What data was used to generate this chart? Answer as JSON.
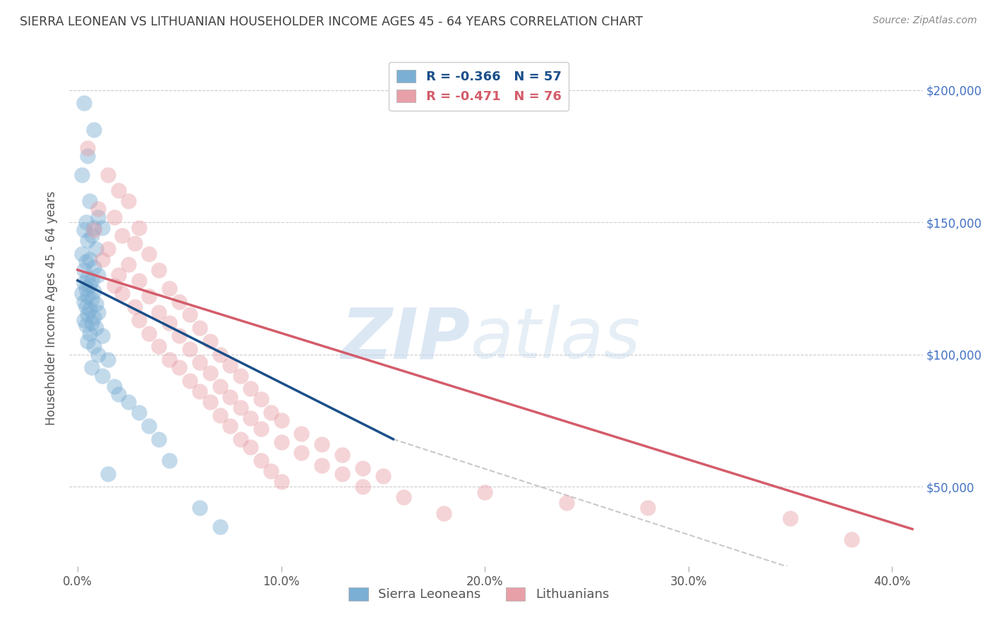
{
  "title": "SIERRA LEONEAN VS LITHUANIAN HOUSEHOLDER INCOME AGES 45 - 64 YEARS CORRELATION CHART",
  "source": "Source: ZipAtlas.com",
  "xlabel_ticks": [
    "0.0%",
    "",
    "",
    "",
    "10.0%",
    "",
    "",
    "",
    "20.0%",
    "",
    "",
    "",
    "30.0%",
    "",
    "",
    "",
    "40.0%"
  ],
  "xlabel_tick_vals": [
    0.0,
    0.025,
    0.05,
    0.075,
    0.1,
    0.125,
    0.15,
    0.175,
    0.2,
    0.225,
    0.25,
    0.275,
    0.3,
    0.325,
    0.35,
    0.375,
    0.4
  ],
  "xlabel_main_ticks": [
    0.0,
    0.1,
    0.2,
    0.3,
    0.4
  ],
  "xlabel_main_labels": [
    "0.0%",
    "10.0%",
    "20.0%",
    "30.0%",
    "40.0%"
  ],
  "ylabel": "Householder Income Ages 45 - 64 years",
  "ylabel_ticks": [
    "$50,000",
    "$100,000",
    "$150,000",
    "$200,000"
  ],
  "ylabel_tick_vals": [
    50000,
    100000,
    150000,
    200000
  ],
  "ylim": [
    20000,
    215000
  ],
  "xlim": [
    -0.004,
    0.415
  ],
  "legend_blue_label": "R = -0.366   N = 57",
  "legend_pink_label": "R = -0.471   N = 76",
  "legend_bottom_blue": "Sierra Leoneans",
  "legend_bottom_pink": "Lithuanians",
  "blue_color": "#7bafd4",
  "pink_color": "#e8a0a8",
  "blue_line_color": "#1a4f8a",
  "pink_line_color": "#d45c6a",
  "dashed_line_color": "#bbbbbb",
  "blue_scatter": [
    [
      0.003,
      195000
    ],
    [
      0.008,
      185000
    ],
    [
      0.005,
      175000
    ],
    [
      0.002,
      168000
    ],
    [
      0.006,
      158000
    ],
    [
      0.01,
      152000
    ],
    [
      0.004,
      150000
    ],
    [
      0.008,
      148000
    ],
    [
      0.012,
      148000
    ],
    [
      0.003,
      147000
    ],
    [
      0.007,
      145000
    ],
    [
      0.005,
      143000
    ],
    [
      0.009,
      140000
    ],
    [
      0.002,
      138000
    ],
    [
      0.006,
      136000
    ],
    [
      0.004,
      135000
    ],
    [
      0.008,
      133000
    ],
    [
      0.003,
      132000
    ],
    [
      0.01,
      130000
    ],
    [
      0.005,
      129000
    ],
    [
      0.007,
      128000
    ],
    [
      0.003,
      127000
    ],
    [
      0.006,
      126000
    ],
    [
      0.004,
      125000
    ],
    [
      0.008,
      124000
    ],
    [
      0.002,
      123000
    ],
    [
      0.005,
      122000
    ],
    [
      0.007,
      121000
    ],
    [
      0.003,
      120000
    ],
    [
      0.009,
      119000
    ],
    [
      0.004,
      118000
    ],
    [
      0.006,
      117000
    ],
    [
      0.01,
      116000
    ],
    [
      0.005,
      115000
    ],
    [
      0.008,
      114000
    ],
    [
      0.003,
      113000
    ],
    [
      0.007,
      112000
    ],
    [
      0.004,
      111000
    ],
    [
      0.009,
      110000
    ],
    [
      0.006,
      108000
    ],
    [
      0.012,
      107000
    ],
    [
      0.005,
      105000
    ],
    [
      0.008,
      103000
    ],
    [
      0.01,
      100000
    ],
    [
      0.015,
      98000
    ],
    [
      0.007,
      95000
    ],
    [
      0.012,
      92000
    ],
    [
      0.018,
      88000
    ],
    [
      0.02,
      85000
    ],
    [
      0.025,
      82000
    ],
    [
      0.03,
      78000
    ],
    [
      0.035,
      73000
    ],
    [
      0.04,
      68000
    ],
    [
      0.045,
      60000
    ],
    [
      0.015,
      55000
    ],
    [
      0.06,
      42000
    ],
    [
      0.07,
      35000
    ]
  ],
  "pink_scatter": [
    [
      0.005,
      178000
    ],
    [
      0.015,
      168000
    ],
    [
      0.02,
      162000
    ],
    [
      0.025,
      158000
    ],
    [
      0.01,
      155000
    ],
    [
      0.018,
      152000
    ],
    [
      0.03,
      148000
    ],
    [
      0.008,
      147000
    ],
    [
      0.022,
      145000
    ],
    [
      0.028,
      142000
    ],
    [
      0.015,
      140000
    ],
    [
      0.035,
      138000
    ],
    [
      0.012,
      136000
    ],
    [
      0.025,
      134000
    ],
    [
      0.04,
      132000
    ],
    [
      0.02,
      130000
    ],
    [
      0.03,
      128000
    ],
    [
      0.018,
      126000
    ],
    [
      0.045,
      125000
    ],
    [
      0.022,
      123000
    ],
    [
      0.035,
      122000
    ],
    [
      0.05,
      120000
    ],
    [
      0.028,
      118000
    ],
    [
      0.04,
      116000
    ],
    [
      0.055,
      115000
    ],
    [
      0.03,
      113000
    ],
    [
      0.045,
      112000
    ],
    [
      0.06,
      110000
    ],
    [
      0.035,
      108000
    ],
    [
      0.05,
      107000
    ],
    [
      0.065,
      105000
    ],
    [
      0.04,
      103000
    ],
    [
      0.055,
      102000
    ],
    [
      0.07,
      100000
    ],
    [
      0.045,
      98000
    ],
    [
      0.06,
      97000
    ],
    [
      0.075,
      96000
    ],
    [
      0.05,
      95000
    ],
    [
      0.065,
      93000
    ],
    [
      0.08,
      92000
    ],
    [
      0.055,
      90000
    ],
    [
      0.07,
      88000
    ],
    [
      0.085,
      87000
    ],
    [
      0.06,
      86000
    ],
    [
      0.075,
      84000
    ],
    [
      0.09,
      83000
    ],
    [
      0.065,
      82000
    ],
    [
      0.08,
      80000
    ],
    [
      0.095,
      78000
    ],
    [
      0.07,
      77000
    ],
    [
      0.085,
      76000
    ],
    [
      0.1,
      75000
    ],
    [
      0.075,
      73000
    ],
    [
      0.09,
      72000
    ],
    [
      0.11,
      70000
    ],
    [
      0.08,
      68000
    ],
    [
      0.1,
      67000
    ],
    [
      0.12,
      66000
    ],
    [
      0.085,
      65000
    ],
    [
      0.11,
      63000
    ],
    [
      0.13,
      62000
    ],
    [
      0.09,
      60000
    ],
    [
      0.12,
      58000
    ],
    [
      0.14,
      57000
    ],
    [
      0.095,
      56000
    ],
    [
      0.13,
      55000
    ],
    [
      0.15,
      54000
    ],
    [
      0.1,
      52000
    ],
    [
      0.14,
      50000
    ],
    [
      0.2,
      48000
    ],
    [
      0.16,
      46000
    ],
    [
      0.24,
      44000
    ],
    [
      0.28,
      42000
    ],
    [
      0.18,
      40000
    ],
    [
      0.35,
      38000
    ],
    [
      0.38,
      30000
    ]
  ],
  "blue_line_x": [
    0.0,
    0.155
  ],
  "blue_line_y": [
    128000,
    68000
  ],
  "pink_line_x": [
    0.0,
    0.41
  ],
  "pink_line_y": [
    132000,
    34000
  ],
  "dashed_line_x": [
    0.155,
    0.42
  ],
  "dashed_line_y": [
    68000,
    2000
  ],
  "watermark_zip": "ZIP",
  "watermark_atlas": "atlas",
  "background_color": "#ffffff",
  "grid_color": "#cccccc",
  "title_color": "#404040",
  "right_tick_color": "#4472c4"
}
